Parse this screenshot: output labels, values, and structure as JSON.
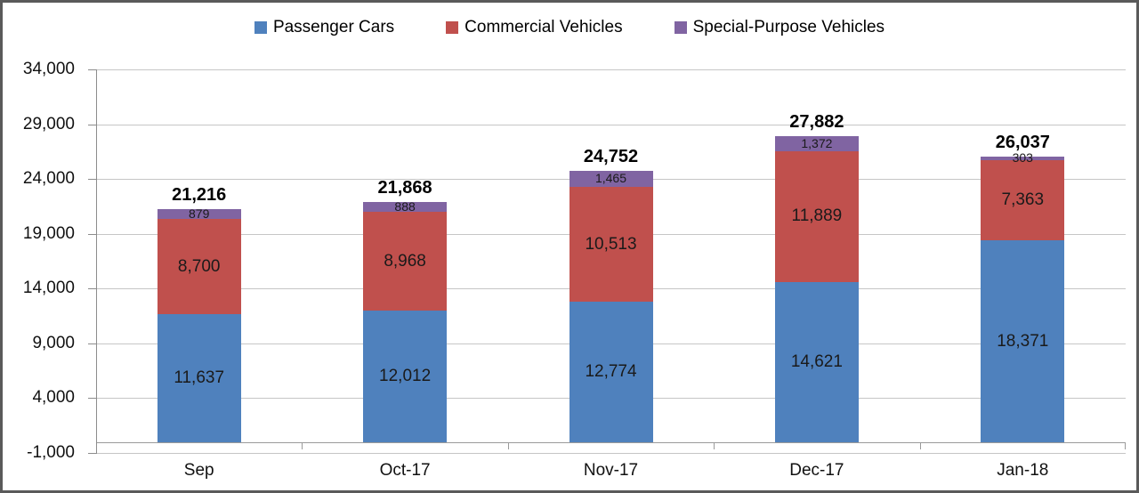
{
  "legend": {
    "position": "top",
    "items": [
      {
        "label": "Passenger Cars",
        "color": "#4F81BD"
      },
      {
        "label": "Commercial Vehicles",
        "color": "#C0504D"
      },
      {
        "label": "Special-Purpose Vehicles",
        "color": "#8064A2"
      }
    ]
  },
  "chart_data": {
    "type": "bar",
    "stacked": true,
    "title": "",
    "xlabel": "",
    "ylabel": "",
    "grid": true,
    "legend_position": "top",
    "categories": [
      "Sep",
      "Oct-17",
      "Nov-17",
      "Dec-17",
      "Jan-18"
    ],
    "series": [
      {
        "name": "Passenger Cars",
        "color": "#4F81BD",
        "values": [
          11637,
          12012,
          12774,
          14621,
          18371
        ]
      },
      {
        "name": "Commercial Vehicles",
        "color": "#C0504D",
        "values": [
          8700,
          8968,
          10513,
          11889,
          7363
        ]
      },
      {
        "name": "Special-Purpose Vehicles",
        "color": "#8064A2",
        "values": [
          879,
          888,
          1465,
          1372,
          303
        ]
      }
    ],
    "totals": [
      21216,
      21868,
      24752,
      27882,
      26037
    ],
    "segment_labels": {
      "Passenger Cars": [
        "11,637",
        "12,012",
        "12,774",
        "14,621",
        "18,371"
      ],
      "Commercial Vehicles": [
        "8,700",
        "8,968",
        "10,513",
        "11,889",
        "7,363"
      ],
      "Special-Purpose Vehicles": [
        "879",
        "888",
        "1,465",
        "1,372",
        "303"
      ]
    },
    "total_labels": [
      "21,216",
      "21,868",
      "24,752",
      "27,882",
      "26,037"
    ],
    "y_axis": {
      "min": -1000,
      "max": 34000,
      "step": 5000,
      "tick_labels": [
        "34,000",
        "29,000",
        "24,000",
        "19,000",
        "14,000",
        "9,000",
        "4,000",
        "-1,000"
      ]
    }
  },
  "colors": {
    "frame_border": "#5a5a5a",
    "gridline": "#c6c6c6",
    "axis_line": "#8c8c8c",
    "background": "#ffffff"
  }
}
